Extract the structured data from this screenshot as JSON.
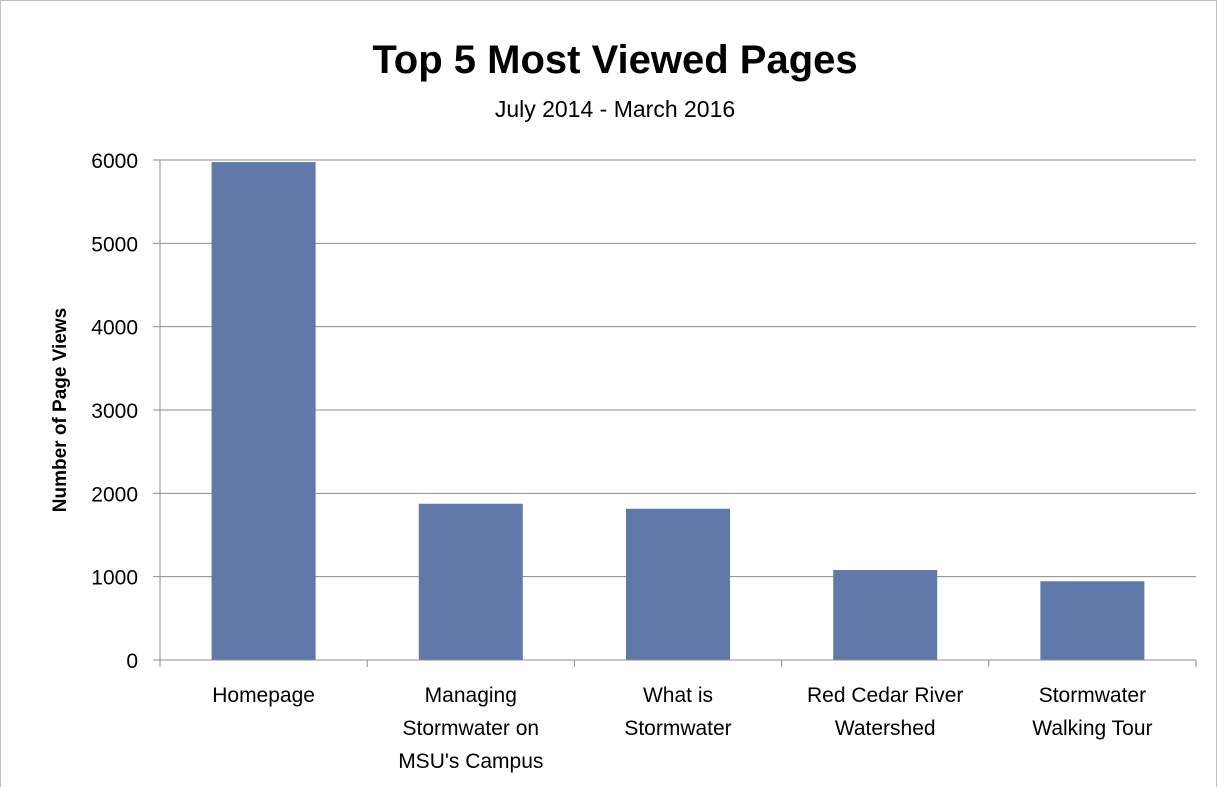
{
  "chart_data": {
    "type": "bar",
    "title": "Top 5 Most Viewed Pages",
    "subtitle": "July 2014 - March 2016",
    "xlabel": "",
    "ylabel": "Number of Page Views",
    "categories": [
      [
        "Homepage"
      ],
      [
        "Managing",
        "Stormwater on",
        "MSU's Campus"
      ],
      [
        "What is",
        "Stormwater"
      ],
      [
        "Red Cedar River",
        "Watershed"
      ],
      [
        "Stormwater",
        "Walking Tour"
      ]
    ],
    "values": [
      5975,
      1875,
      1815,
      1080,
      945
    ],
    "ylim": [
      0,
      6000
    ],
    "yticks": [
      0,
      1000,
      2000,
      3000,
      4000,
      5000,
      6000
    ],
    "grid": true,
    "legend": "none",
    "bar_color": "#6079a8",
    "grid_color": "#8c8c8c"
  }
}
